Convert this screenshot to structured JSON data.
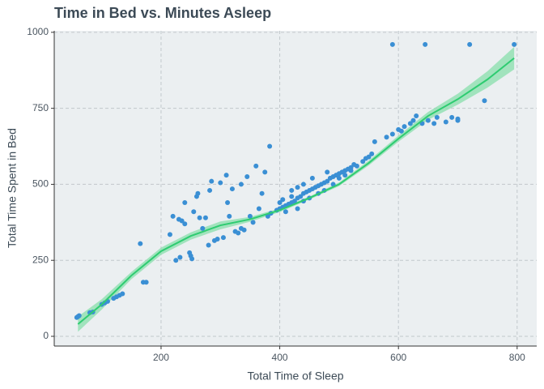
{
  "chart_data": {
    "type": "scatter",
    "title": "Time in Bed vs. Minutes Asleep",
    "x_label": "Total Time of Sleep",
    "y_label": "Total Time Spent in Bed",
    "xlim": [
      20,
      833
    ],
    "ylim": [
      -32,
      1005
    ],
    "xticks": [
      200,
      400,
      600,
      800
    ],
    "yticks": [
      0,
      250,
      500,
      750,
      1000
    ],
    "grid": true,
    "color": "#3a8fd4",
    "x": [
      58,
      60,
      62,
      80,
      85,
      100,
      105,
      110,
      120,
      125,
      130,
      135,
      165,
      170,
      175,
      215,
      220,
      225,
      230,
      232,
      235,
      240,
      240,
      248,
      250,
      252,
      255,
      260,
      262,
      265,
      270,
      275,
      280,
      282,
      285,
      290,
      295,
      300,
      305,
      310,
      312,
      315,
      320,
      325,
      330,
      335,
      335,
      340,
      345,
      350,
      355,
      360,
      365,
      370,
      375,
      383,
      380,
      385,
      395,
      400,
      405,
      410,
      415,
      420,
      425,
      430,
      435,
      440,
      445,
      450,
      455,
      460,
      465,
      470,
      475,
      480,
      485,
      490,
      495,
      500,
      505,
      510,
      515,
      520,
      525,
      530,
      540,
      545,
      550,
      555,
      560,
      400,
      410,
      420,
      430,
      440,
      450,
      455,
      465,
      475,
      480,
      490,
      500,
      510,
      520,
      420,
      430,
      440,
      405,
      580,
      590,
      600,
      605,
      610,
      620,
      625,
      630,
      640,
      650,
      660,
      665,
      680,
      690,
      700,
      590,
      645,
      720,
      745,
      795,
      700
    ],
    "values": [
      62,
      65,
      68,
      78,
      80,
      105,
      110,
      115,
      125,
      130,
      135,
      140,
      305,
      178,
      178,
      335,
      395,
      250,
      385,
      260,
      380,
      440,
      370,
      275,
      265,
      255,
      410,
      460,
      470,
      390,
      355,
      390,
      300,
      480,
      510,
      315,
      320,
      505,
      325,
      530,
      440,
      395,
      485,
      345,
      340,
      500,
      355,
      350,
      525,
      395,
      375,
      560,
      420,
      470,
      540,
      625,
      395,
      405,
      415,
      420,
      425,
      430,
      435,
      440,
      445,
      455,
      460,
      470,
      475,
      480,
      485,
      490,
      495,
      500,
      505,
      510,
      520,
      525,
      530,
      535,
      540,
      545,
      550,
      555,
      565,
      560,
      575,
      585,
      590,
      600,
      640,
      440,
      410,
      460,
      420,
      500,
      455,
      520,
      470,
      480,
      540,
      500,
      520,
      530,
      545,
      480,
      490,
      445,
      450,
      655,
      665,
      680,
      675,
      690,
      700,
      710,
      725,
      700,
      710,
      700,
      720,
      705,
      720,
      715,
      960,
      960,
      960,
      775,
      960,
      710
    ],
    "smooth": {
      "color": "#2ecc71",
      "fill": "#8fe0b0",
      "x": [
        60,
        100,
        150,
        200,
        250,
        300,
        350,
        400,
        450,
        500,
        550,
        600,
        650,
        700,
        750,
        795
      ],
      "values": [
        40,
        105,
        200,
        280,
        330,
        365,
        385,
        415,
        455,
        500,
        570,
        650,
        725,
        780,
        845,
        915
      ],
      "lower": [
        15,
        88,
        188,
        268,
        318,
        352,
        377,
        409,
        450,
        494,
        562,
        640,
        712,
        762,
        818,
        878
      ],
      "upper": [
        65,
        122,
        212,
        292,
        342,
        378,
        393,
        421,
        460,
        506,
        578,
        660,
        738,
        798,
        872,
        952
      ]
    }
  }
}
